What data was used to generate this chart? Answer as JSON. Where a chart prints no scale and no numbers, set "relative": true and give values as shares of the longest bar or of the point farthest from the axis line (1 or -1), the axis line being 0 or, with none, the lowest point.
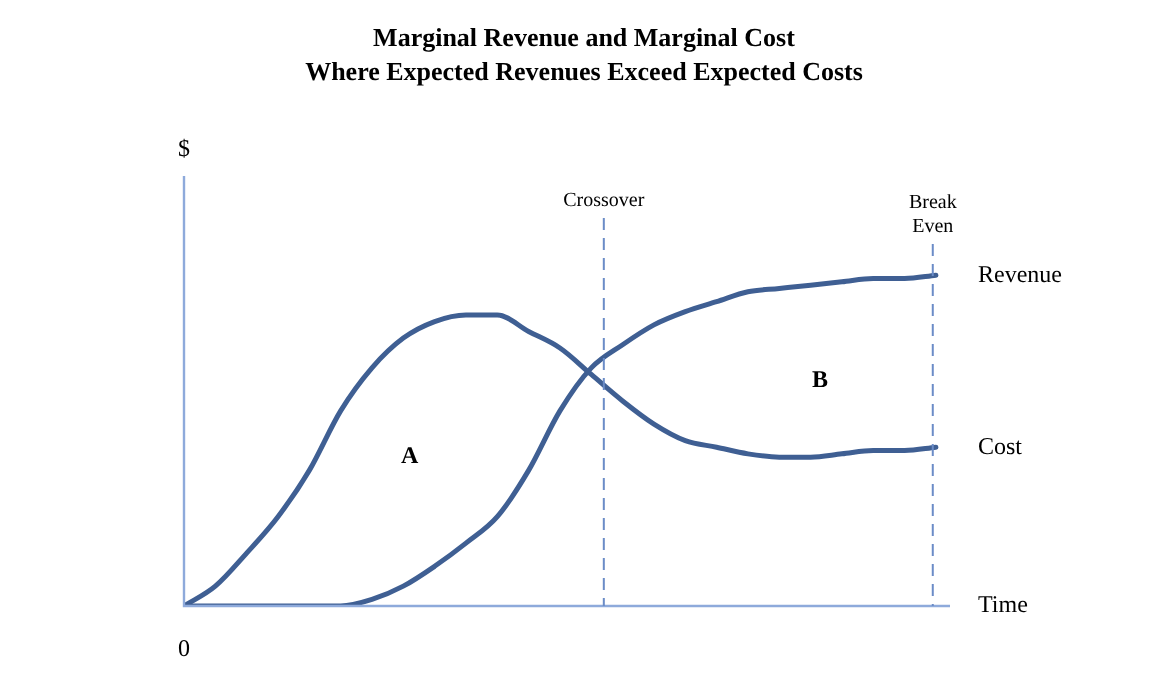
{
  "chart_data": {
    "type": "line",
    "title": "Marginal Revenue and Marginal Cost\nWhere Expected Revenues Exceed Expected Costs",
    "xlabel": "Time",
    "ylabel": "$",
    "relative": true,
    "categories": [
      null,
      null,
      null,
      null,
      null,
      null,
      null,
      null,
      null,
      null,
      null,
      null,
      null,
      null,
      null,
      null,
      null,
      null,
      null,
      null,
      null,
      null,
      null,
      null,
      null
    ],
    "series": [
      {
        "name": "Revenue",
        "color": "#3f5f93",
        "values": [
          0,
          0,
          0,
          0,
          0,
          0,
          0.02,
          0.06,
          0.12,
          0.19,
          0.27,
          0.41,
          0.59,
          0.72,
          0.79,
          0.85,
          0.89,
          0.92,
          0.95,
          0.96,
          0.97,
          0.98,
          0.99,
          0.99,
          1
        ]
      },
      {
        "name": "Cost",
        "color": "#3f5f93",
        "values": [
          0,
          0.06,
          0.16,
          0.27,
          0.41,
          0.59,
          0.72,
          0.81,
          0.86,
          0.88,
          0.88,
          0.83,
          0.78,
          0.7,
          0.62,
          0.55,
          0.5,
          0.48,
          0.46,
          0.45,
          0.45,
          0.46,
          0.47,
          0.47,
          0.48
        ]
      }
    ],
    "annotations": [
      "Crossover",
      "Break\nEven",
      "0",
      "A",
      "B"
    ],
    "legend": false,
    "marker": "none",
    "line_style": "solid"
  }
}
